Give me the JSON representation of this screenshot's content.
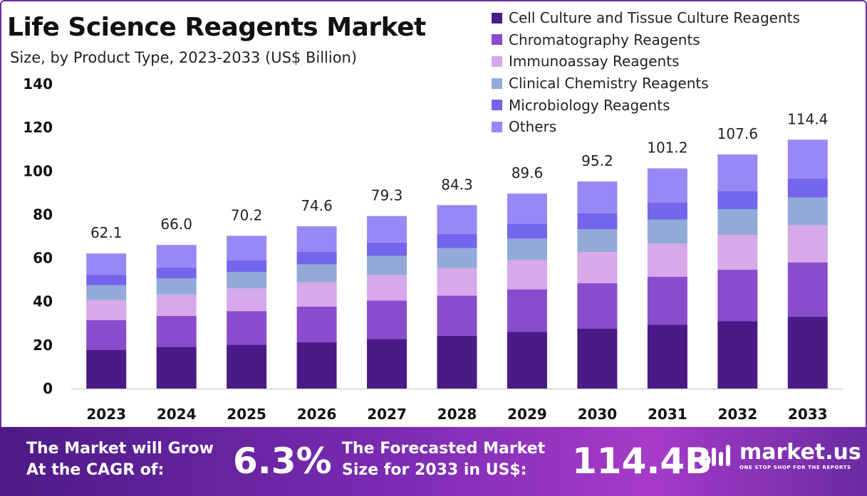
{
  "chart_data": {
    "type": "bar",
    "stacked": true,
    "title": "Life Science Reagents Market",
    "subtitle": "Size, by Product Type, 2023-2033 (US$ Billion)",
    "categories": [
      "2023",
      "2024",
      "2025",
      "2026",
      "2027",
      "2028",
      "2029",
      "2030",
      "2031",
      "2032",
      "2033"
    ],
    "totals": [
      62.1,
      66.0,
      70.2,
      74.6,
      79.3,
      84.3,
      89.6,
      95.2,
      101.2,
      107.6,
      114.4
    ],
    "total_labels": [
      "62.1",
      "66.0",
      "70.2",
      "74.6",
      "79.3",
      "84.3",
      "89.6",
      "95.2",
      "101.2",
      "107.6",
      "114.4"
    ],
    "ylim": [
      0,
      140
    ],
    "yticks": [
      0,
      20,
      40,
      60,
      80,
      100,
      120,
      140
    ],
    "grid": false,
    "legend_position": "top-right",
    "series": [
      {
        "name": "Cell Culture and Tissue Culture Reagents",
        "color": "#4a1a86",
        "values": [
          17.8,
          19.2,
          20.1,
          21.3,
          22.8,
          24.3,
          26.0,
          27.6,
          29.4,
          31.0,
          33.0
        ]
      },
      {
        "name": "Chromatography Reagents",
        "color": "#8a4ccc",
        "values": [
          13.6,
          14.2,
          15.5,
          16.4,
          17.6,
          18.4,
          19.6,
          20.8,
          22.0,
          23.6,
          25.0
        ]
      },
      {
        "name": "Immunoassay Reagents",
        "color": "#d7a8ea",
        "values": [
          9.3,
          9.9,
          10.4,
          11.2,
          11.8,
          12.6,
          13.4,
          14.4,
          15.2,
          16.0,
          17.1
        ]
      },
      {
        "name": "Clinical Chemistry Reagents",
        "color": "#92aad8",
        "values": [
          6.8,
          7.3,
          7.6,
          8.2,
          8.8,
          9.3,
          9.9,
          10.4,
          11.1,
          11.8,
          12.7
        ]
      },
      {
        "name": "Microbiology Reagents",
        "color": "#7466ec",
        "values": [
          4.8,
          5.1,
          5.4,
          5.7,
          6.1,
          6.5,
          6.9,
          7.4,
          7.8,
          8.4,
          8.8
        ]
      },
      {
        "name": "Others",
        "color": "#9689f5",
        "values": [
          9.8,
          10.3,
          11.2,
          11.8,
          12.2,
          13.2,
          13.8,
          14.6,
          15.7,
          16.8,
          17.8
        ]
      }
    ]
  },
  "banner": {
    "cagr_text": "The Market will Grow\nAt the CAGR of:",
    "cagr_value": "6.3%",
    "forecast_text": "The Forecasted Market\nSize for 2033 in US$:",
    "forecast_value": "114.4B",
    "brand_name": "market.us",
    "brand_tagline": "ONE STOP SHOP FOR THE REPORTS",
    "logo_icon": "market-us-logo-icon"
  }
}
